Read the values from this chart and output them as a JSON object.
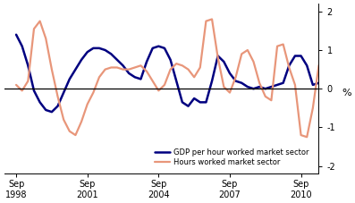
{
  "title": "",
  "ylabel": "%",
  "ylim": [
    -2.2,
    2.2
  ],
  "yticks": [
    -2,
    -1,
    0,
    1,
    2
  ],
  "ytick_labels": [
    "-2",
    "-1",
    "0",
    "1",
    "2"
  ],
  "background_color": "#ffffff",
  "gdp_color": "#000080",
  "hours_color": "#E8967A",
  "gdp_label": "GDP per hour worked market sector",
  "hours_label": "Hours worked market sector",
  "gdp_linewidth": 1.8,
  "hours_linewidth": 1.6,
  "xtick_labels": [
    "Sep\n1998",
    "Sep\n2001",
    "Sep\n2004",
    "Sep\n2007",
    "Sep\n2010"
  ],
  "xtick_positions": [
    0,
    12,
    24,
    36,
    48
  ],
  "xlim": [
    -2,
    51
  ],
  "gdp_y": [
    1.4,
    1.1,
    0.6,
    -0.05,
    -0.35,
    -0.55,
    -0.6,
    -0.45,
    -0.1,
    0.25,
    0.5,
    0.75,
    0.95,
    1.05,
    1.05,
    1.0,
    0.9,
    0.75,
    0.6,
    0.4,
    0.3,
    0.25,
    0.7,
    1.05,
    1.1,
    1.05,
    0.75,
    0.2,
    -0.35,
    -0.45,
    -0.25,
    -0.35,
    -0.35,
    0.2,
    0.85,
    0.7,
    0.4,
    0.2,
    0.15,
    0.05,
    0.0,
    0.05,
    0.0,
    0.05,
    0.1,
    0.15,
    0.6,
    0.85,
    0.85,
    0.6,
    0.1,
    0.15,
    0.2
  ],
  "hours_y": [
    0.1,
    -0.05,
    0.2,
    1.55,
    1.75,
    1.3,
    0.5,
    -0.2,
    -0.8,
    -1.1,
    -1.2,
    -0.85,
    -0.4,
    -0.1,
    0.3,
    0.5,
    0.55,
    0.55,
    0.5,
    0.5,
    0.55,
    0.6,
    0.45,
    0.2,
    -0.05,
    0.1,
    0.5,
    0.65,
    0.6,
    0.5,
    0.3,
    0.55,
    1.75,
    1.8,
    0.8,
    0.05,
    -0.1,
    0.3,
    0.9,
    1.0,
    0.7,
    0.15,
    -0.2,
    -0.3,
    1.1,
    1.15,
    0.55,
    0.1,
    -1.2,
    -1.25,
    -0.5,
    0.6,
    1.0
  ]
}
